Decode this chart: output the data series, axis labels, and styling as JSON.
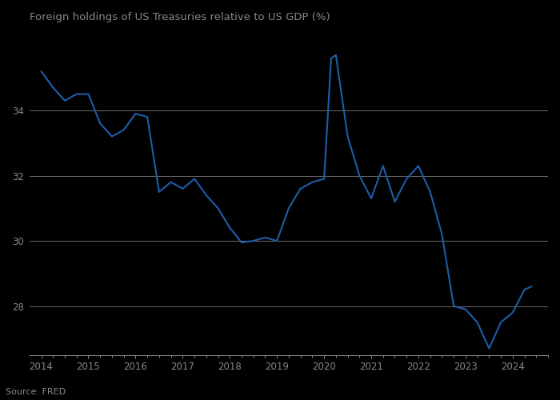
{
  "title": "Foreign holdings of US Treasuries relative to US GDP (%)",
  "source": "Source: FRED",
  "line_color": "#1c5ea8",
  "background_color": "#000000",
  "text_color": "#888888",
  "grid_color": "#ffffff",
  "yticks": [
    28,
    30,
    32,
    34
  ],
  "ylim": [
    26.5,
    36.5
  ],
  "xlim": [
    2013.75,
    2024.7
  ],
  "xtick_years": [
    2014,
    2015,
    2016,
    2017,
    2018,
    2019,
    2020,
    2021,
    2022,
    2023,
    2024
  ],
  "x": [
    2014.0,
    2014.25,
    2014.5,
    2014.75,
    2015.0,
    2015.25,
    2015.5,
    2015.75,
    2016.0,
    2016.25,
    2016.5,
    2016.75,
    2017.0,
    2017.25,
    2017.5,
    2017.75,
    2018.0,
    2018.25,
    2018.5,
    2018.75,
    2019.0,
    2019.25,
    2019.5,
    2019.75,
    2020.0,
    2020.15,
    2020.25,
    2020.5,
    2020.75,
    2021.0,
    2021.25,
    2021.5,
    2021.75,
    2022.0,
    2022.25,
    2022.5,
    2022.75,
    2023.0,
    2023.25,
    2023.5,
    2023.75,
    2024.0,
    2024.25,
    2024.4
  ],
  "y": [
    35.2,
    34.7,
    34.3,
    34.5,
    34.5,
    33.6,
    33.2,
    33.4,
    33.9,
    33.8,
    31.5,
    31.8,
    31.6,
    31.9,
    31.4,
    31.0,
    30.4,
    29.95,
    30.0,
    30.1,
    30.0,
    31.0,
    31.6,
    31.8,
    31.9,
    35.6,
    35.7,
    33.2,
    32.0,
    31.3,
    32.3,
    31.2,
    31.9,
    32.3,
    31.5,
    30.2,
    28.0,
    27.9,
    27.5,
    26.7,
    27.5,
    27.8,
    28.5,
    28.6
  ]
}
